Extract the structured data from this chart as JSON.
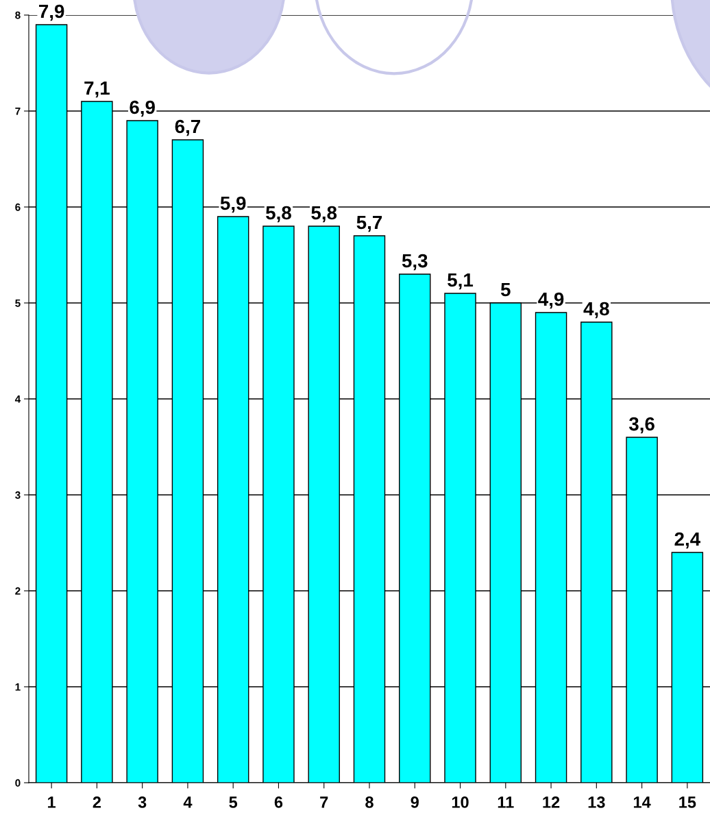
{
  "chart_data": {
    "type": "bar",
    "categories": [
      "1",
      "2",
      "3",
      "4",
      "5",
      "6",
      "7",
      "8",
      "9",
      "10",
      "11",
      "12",
      "13",
      "14",
      "15"
    ],
    "values": [
      7.9,
      7.1,
      6.9,
      6.7,
      5.9,
      5.8,
      5.8,
      5.7,
      5.3,
      5.1,
      5,
      4.9,
      4.8,
      3.6,
      2.4
    ],
    "value_labels": [
      "7,9",
      "7,1",
      "6,9",
      "6,7",
      "5,9",
      "5,8",
      "5,8",
      "5,7",
      "5,3",
      "5,1",
      "5",
      "4,9",
      "4,8",
      "3,6",
      "2,4"
    ],
    "color": "#00ffff",
    "ylim": [
      0,
      8
    ],
    "yticks": [
      0,
      1,
      2,
      3,
      4,
      5,
      6,
      7,
      8
    ],
    "grid": "y"
  }
}
